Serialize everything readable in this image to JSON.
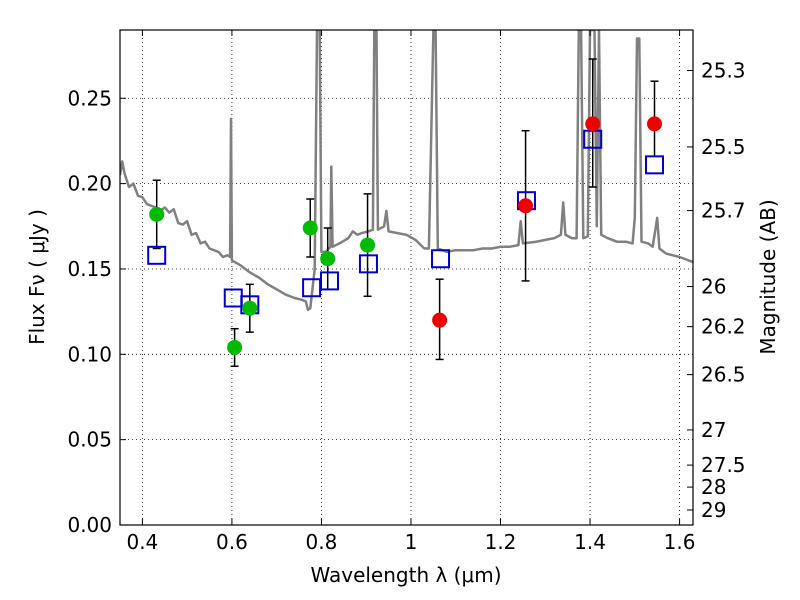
{
  "chart_data": {
    "type": "scatter",
    "xlabel": "Wavelength  λ (μm)",
    "ylabel": "Flux  Fν  ( μJy )",
    "ylabel_right": "Magnitude (AB)",
    "xlim": [
      0.35,
      1.63
    ],
    "ylim": [
      0.0,
      0.29
    ],
    "grid": true,
    "x_ticks": [
      0.4,
      0.6,
      0.8,
      1.0,
      1.2,
      1.4,
      1.6
    ],
    "x_tick_labels": [
      "0.4",
      "0.6",
      "0.8",
      "1",
      "1.2",
      "1.4",
      "1.6"
    ],
    "y_ticks": [
      0.0,
      0.05,
      0.1,
      0.15,
      0.2,
      0.25
    ],
    "y_tick_labels": [
      "0.00",
      "0.05",
      "0.10",
      "0.15",
      "0.20",
      "0.25"
    ],
    "right_ticks": [
      {
        "label": "25.3",
        "flux": 0.2663
      },
      {
        "label": "25.5",
        "flux": 0.2215
      },
      {
        "label": "25.7",
        "flux": 0.1842
      },
      {
        "label": "26",
        "flux": 0.1397
      },
      {
        "label": "26.2",
        "flux": 0.1162
      },
      {
        "label": "26.5",
        "flux": 0.0881
      },
      {
        "label": "27",
        "flux": 0.0557
      },
      {
        "label": "27.5",
        "flux": 0.0351
      },
      {
        "label": "28",
        "flux": 0.0222
      },
      {
        "label": "29",
        "flux": 0.0088
      }
    ],
    "series": [
      {
        "name": "Green observed photometry",
        "color": "#00bb00",
        "marker": "circle",
        "points": [
          {
            "x": 0.432,
            "y": 0.182,
            "err_lo": 0.02,
            "err_hi": 0.02
          },
          {
            "x": 0.606,
            "y": 0.104,
            "err_lo": 0.011,
            "err_hi": 0.011
          },
          {
            "x": 0.64,
            "y": 0.127,
            "err_lo": 0.014,
            "err_hi": 0.014
          },
          {
            "x": 0.775,
            "y": 0.174,
            "err_lo": 0.017,
            "err_hi": 0.017
          },
          {
            "x": 0.814,
            "y": 0.156,
            "err_lo": 0.018,
            "err_hi": 0.018
          },
          {
            "x": 0.903,
            "y": 0.164,
            "err_lo": 0.03,
            "err_hi": 0.03
          }
        ]
      },
      {
        "name": "Red observed photometry",
        "color": "#ee0000",
        "marker": "circle",
        "points": [
          {
            "x": 1.064,
            "y": 0.12,
            "err_lo": 0.023,
            "err_hi": 0.024
          },
          {
            "x": 1.256,
            "y": 0.187,
            "err_lo": 0.044,
            "err_hi": 0.044
          },
          {
            "x": 1.406,
            "y": 0.235,
            "err_lo": 0.037,
            "err_hi": 0.038
          },
          {
            "x": 1.544,
            "y": 0.235,
            "err_lo": 0.019,
            "err_hi": 0.025
          }
        ]
      },
      {
        "name": "Model synthetic photometry",
        "color": "#0000cc",
        "marker": "square-open",
        "points": [
          {
            "x": 0.432,
            "y": 0.158
          },
          {
            "x": 0.603,
            "y": 0.133
          },
          {
            "x": 0.64,
            "y": 0.129
          },
          {
            "x": 0.778,
            "y": 0.139
          },
          {
            "x": 0.818,
            "y": 0.143
          },
          {
            "x": 0.905,
            "y": 0.153
          },
          {
            "x": 1.066,
            "y": 0.156
          },
          {
            "x": 1.258,
            "y": 0.19
          },
          {
            "x": 1.406,
            "y": 0.226
          },
          {
            "x": 1.544,
            "y": 0.211
          }
        ]
      },
      {
        "name": "Model spectrum",
        "color": "#808080",
        "marker": "line",
        "points": [
          {
            "x": 0.35,
            "y": 0.205
          },
          {
            "x": 0.355,
            "y": 0.213
          },
          {
            "x": 0.36,
            "y": 0.206
          },
          {
            "x": 0.37,
            "y": 0.198
          },
          {
            "x": 0.38,
            "y": 0.2
          },
          {
            "x": 0.39,
            "y": 0.193
          },
          {
            "x": 0.4,
            "y": 0.192
          },
          {
            "x": 0.41,
            "y": 0.188
          },
          {
            "x": 0.42,
            "y": 0.187
          },
          {
            "x": 0.43,
            "y": 0.186
          },
          {
            "x": 0.44,
            "y": 0.184
          },
          {
            "x": 0.45,
            "y": 0.186
          },
          {
            "x": 0.46,
            "y": 0.183
          },
          {
            "x": 0.47,
            "y": 0.185
          },
          {
            "x": 0.48,
            "y": 0.177
          },
          {
            "x": 0.49,
            "y": 0.176
          },
          {
            "x": 0.5,
            "y": 0.178
          },
          {
            "x": 0.51,
            "y": 0.17
          },
          {
            "x": 0.52,
            "y": 0.171
          },
          {
            "x": 0.53,
            "y": 0.165
          },
          {
            "x": 0.54,
            "y": 0.166
          },
          {
            "x": 0.55,
            "y": 0.162
          },
          {
            "x": 0.56,
            "y": 0.161
          },
          {
            "x": 0.57,
            "y": 0.16
          },
          {
            "x": 0.58,
            "y": 0.157
          },
          {
            "x": 0.59,
            "y": 0.158
          },
          {
            "x": 0.596,
            "y": 0.157
          },
          {
            "x": 0.598,
            "y": 0.238
          },
          {
            "x": 0.6,
            "y": 0.155
          },
          {
            "x": 0.62,
            "y": 0.152
          },
          {
            "x": 0.64,
            "y": 0.148
          },
          {
            "x": 0.66,
            "y": 0.145
          },
          {
            "x": 0.68,
            "y": 0.141
          },
          {
            "x": 0.7,
            "y": 0.138
          },
          {
            "x": 0.72,
            "y": 0.135
          },
          {
            "x": 0.74,
            "y": 0.133
          },
          {
            "x": 0.755,
            "y": 0.132
          },
          {
            "x": 0.765,
            "y": 0.131
          },
          {
            "x": 0.77,
            "y": 0.126
          },
          {
            "x": 0.775,
            "y": 0.127
          },
          {
            "x": 0.785,
            "y": 0.15
          },
          {
            "x": 0.79,
            "y": 0.29
          },
          {
            "x": 0.796,
            "y": 0.29
          },
          {
            "x": 0.8,
            "y": 0.16
          },
          {
            "x": 0.81,
            "y": 0.16
          },
          {
            "x": 0.82,
            "y": 0.163
          },
          {
            "x": 0.822,
            "y": 0.21
          },
          {
            "x": 0.825,
            "y": 0.163
          },
          {
            "x": 0.84,
            "y": 0.165
          },
          {
            "x": 0.86,
            "y": 0.168
          },
          {
            "x": 0.87,
            "y": 0.172
          },
          {
            "x": 0.88,
            "y": 0.17
          },
          {
            "x": 0.89,
            "y": 0.171
          },
          {
            "x": 0.905,
            "y": 0.172
          },
          {
            "x": 0.915,
            "y": 0.173
          },
          {
            "x": 0.918,
            "y": 0.29
          },
          {
            "x": 0.923,
            "y": 0.29
          },
          {
            "x": 0.926,
            "y": 0.173
          },
          {
            "x": 0.94,
            "y": 0.175
          },
          {
            "x": 0.945,
            "y": 0.184
          },
          {
            "x": 0.95,
            "y": 0.172
          },
          {
            "x": 0.97,
            "y": 0.171
          },
          {
            "x": 0.99,
            "y": 0.17
          },
          {
            "x": 1.01,
            "y": 0.167
          },
          {
            "x": 1.03,
            "y": 0.162
          },
          {
            "x": 1.04,
            "y": 0.162
          },
          {
            "x": 1.05,
            "y": 0.29
          },
          {
            "x": 1.055,
            "y": 0.29
          },
          {
            "x": 1.06,
            "y": 0.162
          },
          {
            "x": 1.08,
            "y": 0.16
          },
          {
            "x": 1.1,
            "y": 0.161
          },
          {
            "x": 1.12,
            "y": 0.161
          },
          {
            "x": 1.14,
            "y": 0.161
          },
          {
            "x": 1.16,
            "y": 0.162
          },
          {
            "x": 1.18,
            "y": 0.162
          },
          {
            "x": 1.2,
            "y": 0.163
          },
          {
            "x": 1.22,
            "y": 0.163
          },
          {
            "x": 1.24,
            "y": 0.164
          },
          {
            "x": 1.245,
            "y": 0.178
          },
          {
            "x": 1.25,
            "y": 0.165
          },
          {
            "x": 1.28,
            "y": 0.166
          },
          {
            "x": 1.3,
            "y": 0.167
          },
          {
            "x": 1.32,
            "y": 0.168
          },
          {
            "x": 1.335,
            "y": 0.17
          },
          {
            "x": 1.34,
            "y": 0.189
          },
          {
            "x": 1.345,
            "y": 0.17
          },
          {
            "x": 1.36,
            "y": 0.168
          },
          {
            "x": 1.37,
            "y": 0.168
          },
          {
            "x": 1.375,
            "y": 0.29
          },
          {
            "x": 1.38,
            "y": 0.29
          },
          {
            "x": 1.385,
            "y": 0.168
          },
          {
            "x": 1.395,
            "y": 0.169
          },
          {
            "x": 1.4,
            "y": 0.29
          },
          {
            "x": 1.41,
            "y": 0.29
          },
          {
            "x": 1.415,
            "y": 0.175
          },
          {
            "x": 1.42,
            "y": 0.29
          },
          {
            "x": 1.425,
            "y": 0.17
          },
          {
            "x": 1.44,
            "y": 0.168
          },
          {
            "x": 1.46,
            "y": 0.166
          },
          {
            "x": 1.48,
            "y": 0.166
          },
          {
            "x": 1.495,
            "y": 0.165
          },
          {
            "x": 1.5,
            "y": 0.18
          },
          {
            "x": 1.505,
            "y": 0.285
          },
          {
            "x": 1.51,
            "y": 0.285
          },
          {
            "x": 1.515,
            "y": 0.166
          },
          {
            "x": 1.53,
            "y": 0.165
          },
          {
            "x": 1.54,
            "y": 0.163
          },
          {
            "x": 1.55,
            "y": 0.18
          },
          {
            "x": 1.555,
            "y": 0.162
          },
          {
            "x": 1.57,
            "y": 0.159
          },
          {
            "x": 1.6,
            "y": 0.157
          },
          {
            "x": 1.63,
            "y": 0.154
          }
        ]
      }
    ]
  }
}
